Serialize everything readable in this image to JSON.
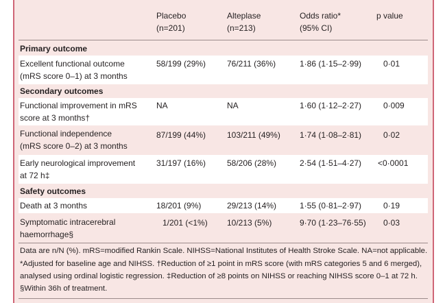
{
  "header": {
    "col1": [
      "Placebo",
      "(n=201)"
    ],
    "col2": [
      "Alteplase",
      "(n=213)"
    ],
    "col3": [
      "Odds ratio*",
      "(95% CI)"
    ],
    "col4": [
      "p value"
    ]
  },
  "sections": {
    "primary": "Primary outcome",
    "secondary": "Secondary outcomes",
    "safety": "Safety outcomes"
  },
  "rows": [
    {
      "label": [
        "Excellent functional outcome",
        "(mRS score 0–1) at 3 months"
      ],
      "placebo": "58/199 (29%)",
      "alteplase": "76/211 (36%)",
      "or": "1·86 (1·15–2·99)",
      "p": "0·01"
    },
    {
      "label": [
        "Functional improvement in mRS",
        "score at 3 months†"
      ],
      "placebo": "NA",
      "alteplase": "NA",
      "or": "1·60 (1·12–2·27)",
      "p": "0·009"
    },
    {
      "label": [
        "Functional independence",
        "(mRS score 0–2) at 3 months"
      ],
      "placebo": "87/199 (44%)",
      "alteplase": "103/211 (49%)",
      "or": "1·74 (1·08–2·81)",
      "p": "0·02"
    },
    {
      "label": [
        "Early neurological improvement",
        "at 72 h‡"
      ],
      "placebo": "31/197 (16%)",
      "alteplase": "58/206 (28%)",
      "or": "2·54 (1·51–4·27)",
      "p": "<0·0001"
    },
    {
      "label": [
        "Death at 3 months"
      ],
      "placebo": "18/201 (9%)",
      "alteplase": "29/213 (14%)",
      "or": "1·55 (0·81–2·97)",
      "p": "0·19"
    },
    {
      "label": [
        "Symptomatic intracerebral",
        "haemorrhage§"
      ],
      "placebo": "1/201 (<1%)",
      "alteplase": "10/213 (5%)",
      "or": "9·70 (1·23–76·55)",
      "p": "0·03"
    }
  ],
  "footnotes": [
    "Data are n/N (%). mRS=modified Rankin Scale. NIHSS=National Institutes of Health Stroke Scale. NA=not applicable.",
    "*Adjusted for baseline age and NIHSS. †Reduction of ≥1 point in mRS score (with mRS categories 5 and 6 merged),",
    "analysed using ordinal logistic regression. ‡Reduction of ≥8 points on NIHSS or reaching NIHSS score 0–1 at 72 h.",
    "§Within 36h of treatment."
  ],
  "colors": {
    "panel": "#f8e6e4",
    "border": "#cf6576",
    "band": "#ffffff"
  }
}
